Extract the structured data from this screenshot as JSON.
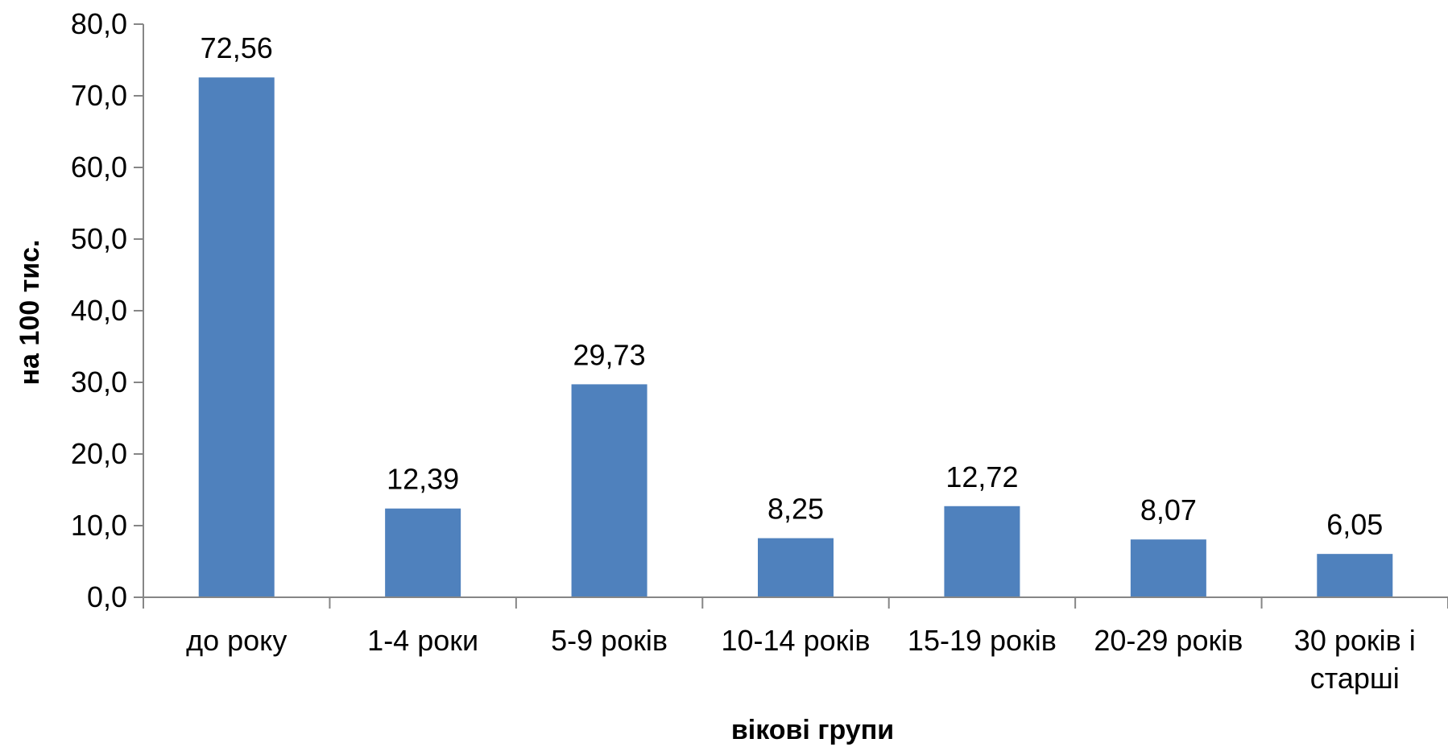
{
  "chart_data": {
    "type": "bar",
    "categories": [
      "до року",
      "1-4 роки",
      "5-9 років",
      "10-14 років",
      "15-19 років",
      "20-29 років",
      "30 років і старші"
    ],
    "values": [
      72.56,
      12.39,
      29.73,
      8.25,
      12.72,
      8.07,
      6.05
    ],
    "data_labels": [
      "72,56",
      "12,39",
      "29,73",
      "8,25",
      "12,72",
      "8,07",
      "6,05"
    ],
    "title": "",
    "xlabel": "вікові групи",
    "ylabel": "на 100 тис.",
    "ylim": [
      0,
      80
    ],
    "yticks": [
      0,
      10,
      20,
      30,
      40,
      50,
      60,
      70,
      80
    ],
    "ytick_labels": [
      "0,0",
      "10,0",
      "20,0",
      "30,0",
      "40,0",
      "50,0",
      "60,0",
      "70,0",
      "80,0"
    ],
    "grid": false,
    "legend": "none",
    "bar_color": "#4f81bd",
    "axis_color": "#868686"
  }
}
